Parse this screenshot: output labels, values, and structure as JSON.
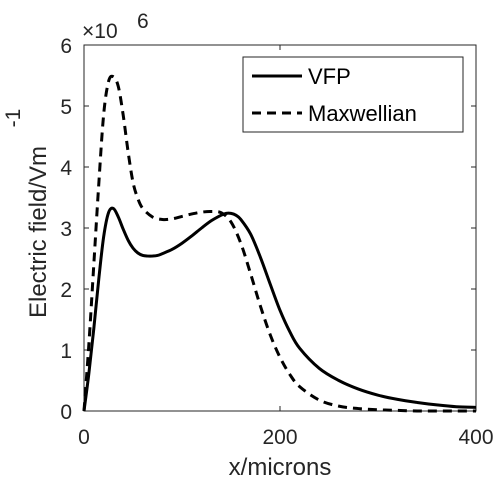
{
  "chart_data": {
    "type": "line",
    "xlabel": "x/microns",
    "ylabel": "Electric field/Vm",
    "ylabel_superscript": "-1",
    "y_exponent_base": "×10",
    "y_exponent_power": "6",
    "xlim": [
      0,
      400
    ],
    "ylim": [
      0,
      6
    ],
    "xticks": [
      0,
      200,
      400
    ],
    "xtick_labels": [
      "0",
      "200",
      "400"
    ],
    "yticks": [
      0,
      1,
      2,
      3,
      4,
      5,
      6
    ],
    "ytick_labels": [
      "0",
      "1",
      "2",
      "3",
      "4",
      "5",
      "6"
    ],
    "grid": false,
    "legend_position": "top-right",
    "series": [
      {
        "name": "VFP",
        "style": "solid",
        "color": "#000000",
        "x": [
          0,
          5,
          10,
          15,
          20,
          25,
          30,
          35,
          40,
          45,
          50,
          55,
          60,
          65,
          70,
          75,
          80,
          90,
          100,
          110,
          120,
          130,
          140,
          145,
          150,
          155,
          160,
          170,
          180,
          190,
          200,
          210,
          220,
          240,
          260,
          280,
          300,
          320,
          340,
          360,
          380,
          400
        ],
        "y": [
          0.0,
          0.62,
          1.35,
          2.15,
          2.85,
          3.25,
          3.32,
          3.18,
          2.98,
          2.8,
          2.67,
          2.59,
          2.55,
          2.54,
          2.54,
          2.55,
          2.58,
          2.65,
          2.75,
          2.87,
          3.0,
          3.12,
          3.21,
          3.24,
          3.24,
          3.21,
          3.14,
          2.9,
          2.52,
          2.08,
          1.65,
          1.3,
          1.03,
          0.7,
          0.5,
          0.36,
          0.26,
          0.19,
          0.14,
          0.1,
          0.07,
          0.06
        ]
      },
      {
        "name": "Maxwellian",
        "style": "dashed",
        "color": "#000000",
        "x": [
          0,
          5,
          10,
          15,
          20,
          25,
          30,
          35,
          40,
          45,
          50,
          55,
          60,
          70,
          80,
          90,
          100,
          110,
          120,
          130,
          140,
          150,
          160,
          170,
          180,
          190,
          200,
          210,
          220,
          240,
          260,
          280,
          300,
          320,
          340,
          360,
          380,
          400
        ],
        "y": [
          0.0,
          1.1,
          2.4,
          3.7,
          4.85,
          5.4,
          5.48,
          5.32,
          4.85,
          4.25,
          3.75,
          3.48,
          3.32,
          3.18,
          3.14,
          3.15,
          3.19,
          3.23,
          3.26,
          3.27,
          3.25,
          3.1,
          2.75,
          2.25,
          1.72,
          1.25,
          0.88,
          0.6,
          0.4,
          0.18,
          0.08,
          0.04,
          0.02,
          0.01,
          0.0,
          0.0,
          0.0,
          0.0
        ]
      }
    ]
  }
}
